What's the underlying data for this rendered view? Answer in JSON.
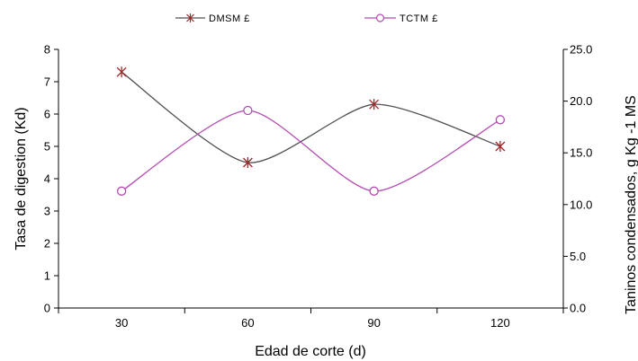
{
  "chart_data": {
    "type": "line",
    "categories": [
      "30",
      "60",
      "90",
      "120"
    ],
    "x": [
      30,
      60,
      90,
      120
    ],
    "xlabel": "Edad de corte (d)",
    "xlim": [
      15,
      135
    ],
    "ylabel": "Tasa de digestion (Kd)",
    "ylim": [
      0,
      8
    ],
    "yticks": [
      "0",
      "1",
      "2",
      "3",
      "4",
      "5",
      "6",
      "7",
      "8"
    ],
    "y2label": "Taninos condensados, g Kg -1 MS",
    "y2lim": [
      0,
      25
    ],
    "y2ticks": [
      "0.0",
      "5.0",
      "10.0",
      "15.0",
      "20.0",
      "25.0"
    ],
    "grid": false,
    "legend": "top",
    "series": [
      {
        "name": "DMSM £",
        "axis": "left",
        "marker": "star",
        "line_color": "#505050",
        "marker_color": "#a0282d",
        "values": [
          7.3,
          4.5,
          6.3,
          5.0
        ]
      },
      {
        "name": "TCTM £",
        "axis": "right",
        "marker": "circle",
        "line_color": "#b44bb4",
        "marker_color": "#b44bb4",
        "values": [
          11.3,
          19.1,
          11.3,
          18.2
        ]
      }
    ]
  }
}
